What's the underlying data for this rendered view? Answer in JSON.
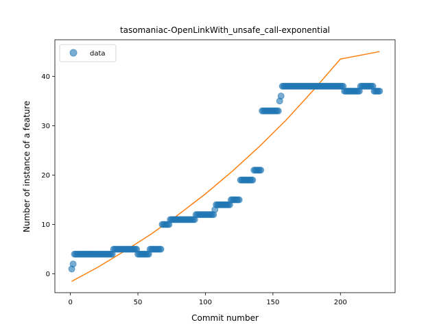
{
  "chart_data": {
    "type": "scatter",
    "title": "tasomaniac-OpenLinkWith_unsafe_call-exponential",
    "xlabel": "Commit number",
    "ylabel": "Number of instance of a feature",
    "xlim": [
      -11.5,
      240.5
    ],
    "ylim": [
      -3.8,
      47.4
    ],
    "xticks": [
      0,
      50,
      100,
      150,
      200
    ],
    "yticks": [
      0,
      10,
      20,
      30,
      40
    ],
    "legend": {
      "position": "top-left",
      "entries": [
        "data"
      ]
    },
    "grid": false,
    "colors": {
      "data": "#1f77b4",
      "fit": "#ff7f0e"
    },
    "series": [
      {
        "name": "data",
        "kind": "scatter",
        "points": [
          [
            1,
            1
          ],
          [
            2,
            2
          ],
          [
            3,
            4
          ],
          [
            4,
            4
          ],
          [
            5,
            4
          ],
          [
            6,
            4
          ],
          [
            7,
            4
          ],
          [
            8,
            4
          ],
          [
            9,
            4
          ],
          [
            10,
            4
          ],
          [
            11,
            4
          ],
          [
            12,
            4
          ],
          [
            13,
            4
          ],
          [
            14,
            4
          ],
          [
            15,
            4
          ],
          [
            16,
            4
          ],
          [
            17,
            4
          ],
          [
            18,
            4
          ],
          [
            19,
            4
          ],
          [
            20,
            4
          ],
          [
            21,
            4
          ],
          [
            22,
            4
          ],
          [
            23,
            4
          ],
          [
            24,
            4
          ],
          [
            25,
            4
          ],
          [
            26,
            4
          ],
          [
            27,
            4
          ],
          [
            28,
            4
          ],
          [
            29,
            4
          ],
          [
            30,
            4
          ],
          [
            31,
            4
          ],
          [
            32,
            5
          ],
          [
            33,
            5
          ],
          [
            34,
            5
          ],
          [
            35,
            5
          ],
          [
            36,
            5
          ],
          [
            37,
            5
          ],
          [
            38,
            5
          ],
          [
            39,
            5
          ],
          [
            40,
            5
          ],
          [
            41,
            5
          ],
          [
            42,
            5
          ],
          [
            43,
            5
          ],
          [
            44,
            5
          ],
          [
            45,
            5
          ],
          [
            46,
            5
          ],
          [
            47,
            5
          ],
          [
            48,
            5
          ],
          [
            49,
            5
          ],
          [
            50,
            4
          ],
          [
            51,
            4
          ],
          [
            52,
            4
          ],
          [
            53,
            4
          ],
          [
            54,
            4
          ],
          [
            55,
            4
          ],
          [
            56,
            4
          ],
          [
            57,
            4
          ],
          [
            58,
            4
          ],
          [
            59,
            5
          ],
          [
            60,
            5
          ],
          [
            61,
            5
          ],
          [
            62,
            5
          ],
          [
            63,
            5
          ],
          [
            64,
            5
          ],
          [
            65,
            5
          ],
          [
            66,
            5
          ],
          [
            67,
            5
          ],
          [
            68,
            10
          ],
          [
            69,
            10
          ],
          [
            70,
            10
          ],
          [
            71,
            10
          ],
          [
            72,
            10
          ],
          [
            73,
            10
          ],
          [
            74,
            11
          ],
          [
            75,
            11
          ],
          [
            76,
            11
          ],
          [
            77,
            11
          ],
          [
            78,
            11
          ],
          [
            79,
            11
          ],
          [
            80,
            11
          ],
          [
            81,
            11
          ],
          [
            82,
            11
          ],
          [
            83,
            11
          ],
          [
            84,
            11
          ],
          [
            85,
            11
          ],
          [
            86,
            11
          ],
          [
            87,
            11
          ],
          [
            88,
            11
          ],
          [
            89,
            11
          ],
          [
            90,
            11
          ],
          [
            91,
            11
          ],
          [
            92,
            11
          ],
          [
            93,
            12
          ],
          [
            94,
            12
          ],
          [
            95,
            12
          ],
          [
            96,
            12
          ],
          [
            97,
            12
          ],
          [
            98,
            12
          ],
          [
            99,
            12
          ],
          [
            100,
            12
          ],
          [
            101,
            12
          ],
          [
            102,
            12
          ],
          [
            103,
            12
          ],
          [
            104,
            12
          ],
          [
            105,
            12
          ],
          [
            106,
            12
          ],
          [
            107,
            13
          ],
          [
            108,
            14
          ],
          [
            109,
            14
          ],
          [
            110,
            14
          ],
          [
            111,
            14
          ],
          [
            112,
            14
          ],
          [
            113,
            14
          ],
          [
            114,
            14
          ],
          [
            115,
            14
          ],
          [
            116,
            14
          ],
          [
            117,
            14
          ],
          [
            118,
            14
          ],
          [
            119,
            15
          ],
          [
            120,
            15
          ],
          [
            121,
            15
          ],
          [
            122,
            15
          ],
          [
            123,
            15
          ],
          [
            124,
            15
          ],
          [
            125,
            15
          ],
          [
            126,
            19
          ],
          [
            127,
            19
          ],
          [
            128,
            19
          ],
          [
            129,
            19
          ],
          [
            130,
            19
          ],
          [
            131,
            19
          ],
          [
            132,
            19
          ],
          [
            133,
            19
          ],
          [
            134,
            19
          ],
          [
            135,
            19
          ],
          [
            136,
            21
          ],
          [
            137,
            21
          ],
          [
            138,
            21
          ],
          [
            139,
            21
          ],
          [
            140,
            21
          ],
          [
            141,
            21
          ],
          [
            142,
            33
          ],
          [
            143,
            33
          ],
          [
            144,
            33
          ],
          [
            145,
            33
          ],
          [
            146,
            33
          ],
          [
            147,
            33
          ],
          [
            148,
            33
          ],
          [
            149,
            33
          ],
          [
            150,
            33
          ],
          [
            151,
            33
          ],
          [
            152,
            33
          ],
          [
            153,
            33
          ],
          [
            154,
            33
          ],
          [
            155,
            35
          ],
          [
            156,
            36
          ],
          [
            157,
            38
          ],
          [
            158,
            38
          ],
          [
            159,
            38
          ],
          [
            160,
            38
          ],
          [
            161,
            38
          ],
          [
            162,
            38
          ],
          [
            163,
            38
          ],
          [
            164,
            38
          ],
          [
            165,
            38
          ],
          [
            166,
            38
          ],
          [
            167,
            38
          ],
          [
            168,
            38
          ],
          [
            169,
            38
          ],
          [
            170,
            38
          ],
          [
            171,
            38
          ],
          [
            172,
            38
          ],
          [
            173,
            38
          ],
          [
            174,
            38
          ],
          [
            175,
            38
          ],
          [
            176,
            38
          ],
          [
            177,
            38
          ],
          [
            178,
            38
          ],
          [
            179,
            38
          ],
          [
            180,
            38
          ],
          [
            181,
            38
          ],
          [
            182,
            38
          ],
          [
            183,
            38
          ],
          [
            184,
            38
          ],
          [
            185,
            38
          ],
          [
            186,
            38
          ],
          [
            187,
            38
          ],
          [
            188,
            38
          ],
          [
            189,
            38
          ],
          [
            190,
            38
          ],
          [
            191,
            38
          ],
          [
            192,
            38
          ],
          [
            193,
            38
          ],
          [
            194,
            38
          ],
          [
            195,
            38
          ],
          [
            196,
            38
          ],
          [
            197,
            38
          ],
          [
            198,
            38
          ],
          [
            199,
            38
          ],
          [
            200,
            38
          ],
          [
            201,
            38
          ],
          [
            202,
            38
          ],
          [
            203,
            37
          ],
          [
            204,
            37
          ],
          [
            205,
            37
          ],
          [
            206,
            37
          ],
          [
            207,
            37
          ],
          [
            208,
            37
          ],
          [
            209,
            37
          ],
          [
            210,
            37
          ],
          [
            211,
            37
          ],
          [
            212,
            37
          ],
          [
            213,
            37
          ],
          [
            214,
            37
          ],
          [
            215,
            38
          ],
          [
            216,
            38
          ],
          [
            217,
            38
          ],
          [
            218,
            38
          ],
          [
            219,
            38
          ],
          [
            220,
            38
          ],
          [
            221,
            38
          ],
          [
            222,
            38
          ],
          [
            223,
            38
          ],
          [
            224,
            38
          ],
          [
            225,
            37
          ],
          [
            226,
            37
          ],
          [
            227,
            37
          ],
          [
            228,
            37
          ],
          [
            229,
            37
          ]
        ]
      },
      {
        "kind": "line",
        "points": [
          [
            1,
            -1.5
          ],
          [
            20,
            1.3
          ],
          [
            40,
            4.6
          ],
          [
            60,
            8.1
          ],
          [
            80,
            12.0
          ],
          [
            100,
            16.2
          ],
          [
            120,
            20.8
          ],
          [
            140,
            25.8
          ],
          [
            160,
            31.2
          ],
          [
            180,
            37.2
          ],
          [
            200,
            43.5
          ],
          [
            229,
            45.0
          ]
        ]
      }
    ]
  }
}
